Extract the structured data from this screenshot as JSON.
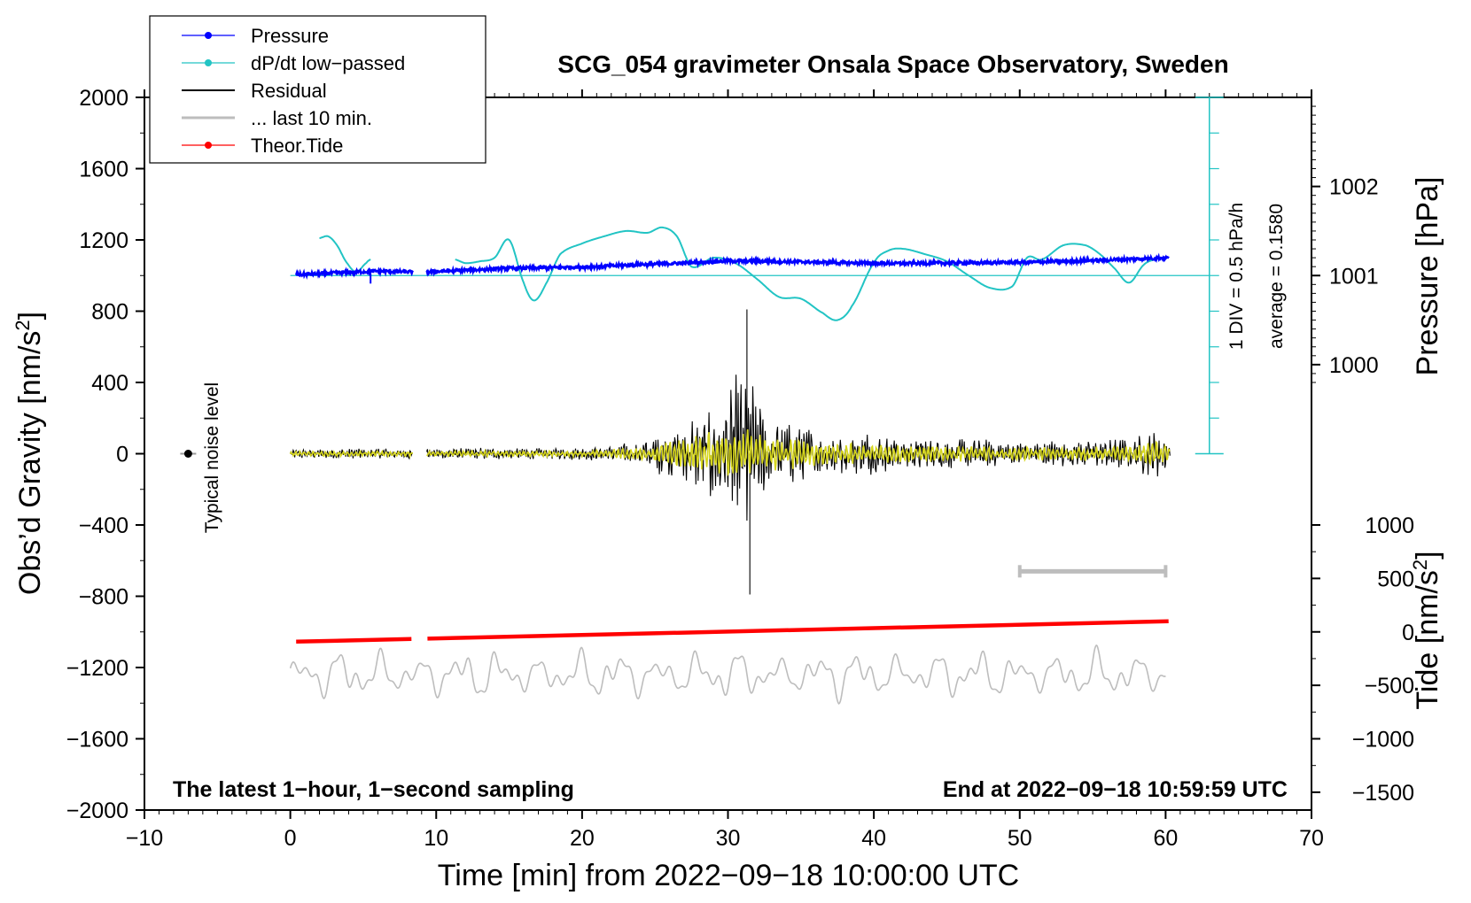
{
  "chart_data": {
    "type": "line",
    "title": "SCG_054 gravimeter Onsala Space Observatory, Sweden",
    "xlabel": "Time [min] from 2022−09−18 10:00:00 UTC",
    "ylabel": "Obs’d Gravity [nm/s",
    "ylabel_sup": "2",
    "ylabel_end": "]",
    "y2label_pressure": "Pressure [hPa]",
    "y2label_tide": "Tide [nm/s",
    "y2label_tide_sup": "2",
    "y2label_tide_end": "]",
    "xlim": [
      -10,
      70
    ],
    "ylim": [
      -2000,
      2000
    ],
    "x_ticks": [
      -10,
      0,
      10,
      20,
      30,
      40,
      50,
      60,
      70
    ],
    "x_tick_labels": [
      "−10",
      "0",
      "10",
      "20",
      "30",
      "40",
      "50",
      "60",
      "70"
    ],
    "y_ticks": [
      2000,
      1600,
      1200,
      800,
      400,
      0,
      -400,
      -800,
      -1200,
      -1600,
      -2000
    ],
    "y_tick_labels": [
      "2000",
      "1600",
      "1200",
      "800",
      "400",
      "0",
      "−400",
      "−800",
      "−1200",
      "−1600",
      "−2000"
    ],
    "pressure_ticks": [
      1002,
      1001,
      1000
    ],
    "pressure_tick_labels": [
      "1002",
      "1001",
      "1000"
    ],
    "pressure_ref_gravity_at_1001": 1000,
    "pressure_gravity_per_hPa": 500,
    "tide_ticks": [
      1000,
      500,
      0,
      -500,
      -1000,
      -1500
    ],
    "tide_tick_labels": [
      "1000",
      "500",
      "0",
      "−500",
      "−1000",
      "−1500"
    ],
    "tide_gravity_offset": -1000,
    "tide_gravity_scale": 0.6,
    "annotations": {
      "bottom_left": "The latest 1−hour, 1−second sampling",
      "bottom_right": "End at 2022−09−18 10:59:59 UTC",
      "noise_label": "Typical noise level",
      "div_label": "1 DIV = 0.5 hPa/h",
      "average_label": "average = 0.1580"
    },
    "legend": {
      "position": "top-left",
      "entries": [
        {
          "label": "Pressure",
          "color": "#0000ff",
          "marker": true
        },
        {
          "label": "dP/dt low−passed",
          "color": "#22c4c4",
          "marker": true
        },
        {
          "label": "Residual",
          "color": "#000000",
          "marker": false
        },
        {
          "label": "... last 10 min.",
          "color": "#bdbdbd",
          "marker": false
        },
        {
          "label": "Theor.Tide",
          "color": "#ff0000",
          "marker": true
        }
      ]
    },
    "gaps_min": [
      [
        8.4,
        9.3
      ]
    ],
    "series": [
      {
        "name": "Pressure",
        "axis": "gravity",
        "color": "#0000ff",
        "x": [
          0.4,
          2,
          4,
          6,
          8.3,
          9.4,
          12,
          15,
          18,
          21,
          24,
          27,
          30,
          33,
          36,
          39,
          42,
          45,
          48,
          51,
          54,
          57,
          60.2
        ],
        "values": [
          1005,
          1010,
          1018,
          1025,
          1020,
          1020,
          1030,
          1040,
          1045,
          1050,
          1062,
          1070,
          1082,
          1080,
          1075,
          1070,
          1068,
          1070,
          1072,
          1075,
          1082,
          1090,
          1100
        ]
      },
      {
        "name": "dP/dt low−passed",
        "axis": "gravity",
        "color": "#22c4c4",
        "segments": [
          {
            "x": [
              2.0,
              2.6,
              3.2,
              3.8,
              4.5,
              5.2,
              5.5
            ],
            "values": [
              1210,
              1220,
              1170,
              1080,
              1020,
              1070,
              1090
            ]
          },
          {
            "x": [
              11.3,
              12,
              13,
              14,
              15,
              16,
              16.7,
              17.5,
              18.5,
              20,
              21.5,
              23,
              24.5,
              25.5,
              26.5,
              27.5,
              29,
              30.5,
              32,
              33.5,
              35,
              36.5,
              37.5,
              38.5,
              40,
              41,
              42,
              43.5,
              45,
              46.5,
              48,
              49.5,
              50.5,
              51.5,
              53,
              54.5,
              55.5,
              56.5,
              57.5,
              58.5,
              59.3
            ],
            "values": [
              1090,
              1070,
              1080,
              1100,
              1200,
              960,
              860,
              950,
              1120,
              1180,
              1220,
              1250,
              1240,
              1270,
              1220,
              1050,
              1100,
              1070,
              980,
              880,
              870,
              790,
              750,
              830,
              1070,
              1140,
              1150,
              1120,
              1080,
              1000,
              930,
              940,
              1100,
              1090,
              1170,
              1170,
              1120,
              1040,
              960,
              1060,
              1090
            ]
          }
        ]
      },
      {
        "name": "Residual",
        "axis": "gravity",
        "color": "#000000",
        "x_range": [
          0,
          60.3
        ],
        "envelope_x": [
          0,
          8,
          20,
          24,
          26,
          28,
          29.5,
          30.5,
          31.3,
          32,
          33,
          34,
          36,
          40,
          45,
          50,
          54,
          58,
          59.3,
          60.3
        ],
        "envelope_amp": [
          40,
          45,
          50,
          100,
          200,
          330,
          500,
          600,
          800,
          480,
          320,
          260,
          220,
          160,
          130,
          110,
          110,
          140,
          220,
          120
        ],
        "peak_max": 810,
        "peak_min": -790
      },
      {
        "name": "Residual low-passed",
        "axis": "gravity",
        "color": "#d6d61e",
        "x_range": [
          0,
          60.3
        ]
      },
      {
        "name": "Theor.Tide",
        "axis": "gravity",
        "color": "#ff0000",
        "x": [
          0.4,
          8.3,
          9.4,
          60.2
        ],
        "values": [
          -1055,
          -1040,
          -1038,
          -940
        ]
      },
      {
        "name": "... last 10 min.",
        "axis": "gravity",
        "color": "#bdbdbd",
        "x_range": [
          0,
          60
        ],
        "baseline": -1240,
        "amplitude": 120
      },
      {
        "name": "Typical noise level",
        "axis": "gravity",
        "color": "#000000",
        "x": [
          -7
        ],
        "values": [
          0
        ]
      },
      {
        "name": "last 10 min window",
        "axis": "gravity",
        "color": "#bdbdbd",
        "x": [
          50,
          60
        ],
        "values": [
          -660,
          -660
        ]
      }
    ]
  }
}
